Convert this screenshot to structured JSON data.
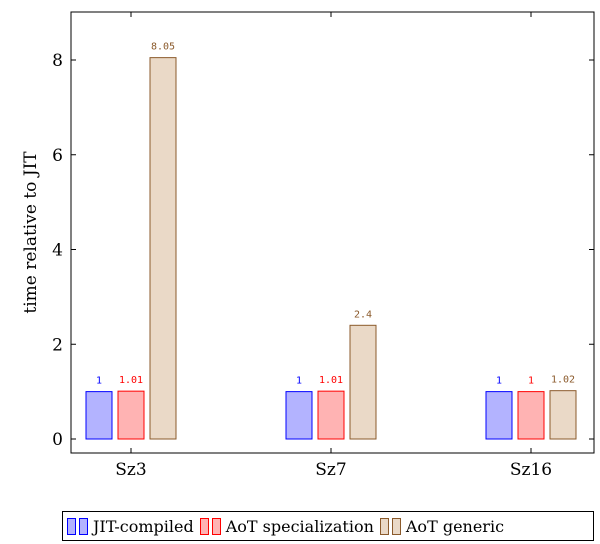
{
  "chart_data": {
    "type": "bar",
    "categories": [
      "Sz3",
      "Sz7",
      "Sz16"
    ],
    "series": [
      {
        "name": "JIT-compiled",
        "values": [
          1,
          1,
          1
        ],
        "labels": [
          "1",
          "1",
          "1"
        ],
        "fill": "#b3b3ff",
        "stroke": "#0000ff"
      },
      {
        "name": "AoT specialization",
        "values": [
          1.01,
          1.01,
          1
        ],
        "labels": [
          "1.01",
          "1.01",
          "1"
        ],
        "fill": "#ffb3b3",
        "stroke": "#ff0000"
      },
      {
        "name": "AoT generic",
        "values": [
          8.05,
          2.4,
          1.02
        ],
        "labels": [
          "8.05",
          "2.4",
          "1.02"
        ],
        "fill": "#ead9c7",
        "stroke": "#8b5a2b"
      }
    ],
    "ylabel": "time relative to JIT",
    "xlabel": "",
    "ylim": [
      0,
      9
    ],
    "yticks": [
      "0",
      "2",
      "4",
      "6",
      "8"
    ],
    "grid": false,
    "legend_position": "bottom"
  },
  "colors": {
    "label_blue": "#0000ff",
    "label_red": "#ff0000",
    "label_brown": "#8b5a2b"
  }
}
